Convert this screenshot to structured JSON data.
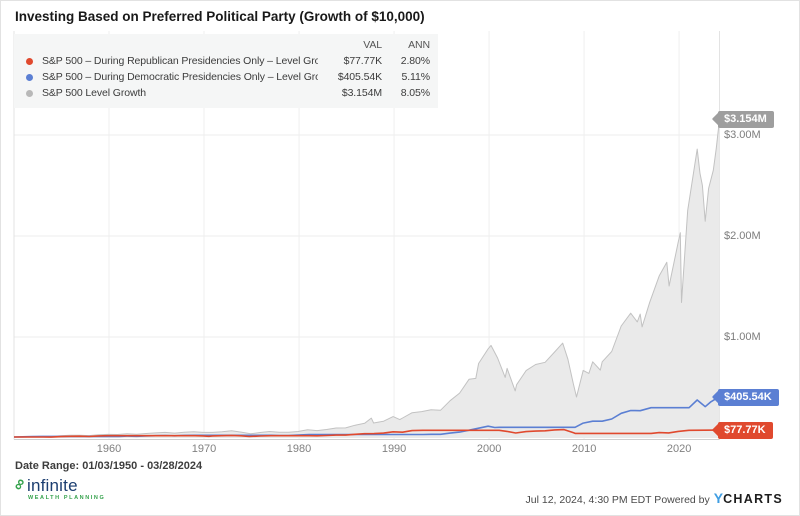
{
  "title": "Investing Based on Preferred Political Party (Growth of $10,000)",
  "legend": {
    "val_header": "VAL",
    "ann_header": "ANN",
    "rows": [
      {
        "label": "S&P 500 – During Republican Presidencies Only – Level Growth",
        "val": "$77.77K",
        "ann": "2.80%",
        "color": "#e0492e"
      },
      {
        "label": "S&P 500 – During Democratic Presidencies Only – Level Growth",
        "val": "$405.54K",
        "ann": "5.11%",
        "color": "#5b7fd3"
      },
      {
        "label": "S&P 500 Level Growth",
        "val": "$3.154M",
        "ann": "8.05%",
        "color": "#b8b8b8"
      }
    ]
  },
  "footer": {
    "date_range": "Date Range: 01/03/1950 - 03/28/2024",
    "logo_text": "infinite",
    "logo_glyph": "∞",
    "logo_sub": "WEALTH PLANNING",
    "timestamp": "Jul 12, 2024, 4:30 PM EDT Powered by",
    "ycharts_y": "Y",
    "ycharts_rest": "CHARTS"
  },
  "chart_data": {
    "type": "area",
    "title": "Investing Based on Preferred Political Party (Growth of $10,000)",
    "unit": "USD thousands",
    "x_range": [
      1950,
      2024.25
    ],
    "ylim_thousands": [
      0,
      3300
    ],
    "grid": true,
    "legend_position": "top-left",
    "x_label_years": [
      1960,
      1970,
      1980,
      1990,
      2000,
      2010,
      2020
    ],
    "y_ticks": [
      {
        "label": "$3.00M",
        "value": 3000
      },
      {
        "label": "$2.00M",
        "value": 2000
      },
      {
        "label": "$1.00M",
        "value": 1000
      }
    ],
    "series": [
      {
        "name": "S&P 500 Level Growth",
        "end_label": "$3.154M",
        "end_value": 3154,
        "annualized": "8.05%",
        "color": "#c2c2c2",
        "fill": "#eaeaea",
        "tag_color": "#9e9e9e",
        "width": 1,
        "points": [
          [
            1950,
            10
          ],
          [
            1950.9,
            12.2
          ],
          [
            1951.9,
            14.3
          ],
          [
            1952.9,
            16
          ],
          [
            1953.9,
            14.9
          ],
          [
            1954.9,
            21.6
          ],
          [
            1955.9,
            27.3
          ],
          [
            1956.9,
            28
          ],
          [
            1957.9,
            24
          ],
          [
            1958.9,
            33.1
          ],
          [
            1959.9,
            36
          ],
          [
            1960.9,
            34.9
          ],
          [
            1961.9,
            43
          ],
          [
            1962.9,
            37.9
          ],
          [
            1963.9,
            45
          ],
          [
            1964.9,
            50.9
          ],
          [
            1965.9,
            55.5
          ],
          [
            1966.9,
            48.2
          ],
          [
            1967.9,
            57.9
          ],
          [
            1968.9,
            62.4
          ],
          [
            1969.9,
            55.3
          ],
          [
            1970.9,
            55.3
          ],
          [
            1971.9,
            61.3
          ],
          [
            1972.9,
            70.9
          ],
          [
            1973.9,
            58.6
          ],
          [
            1974.9,
            41.2
          ],
          [
            1975.9,
            54.1
          ],
          [
            1976.9,
            64.5
          ],
          [
            1977.9,
            57.1
          ],
          [
            1978.9,
            57.7
          ],
          [
            1979.9,
            64.8
          ],
          [
            1980.9,
            81.5
          ],
          [
            1981.9,
            73.6
          ],
          [
            1982.9,
            84.4
          ],
          [
            1983.9,
            99
          ],
          [
            1984.9,
            100.4
          ],
          [
            1985.9,
            126.8
          ],
          [
            1986.9,
            145.4
          ],
          [
            1987.6,
            197
          ],
          [
            1987.85,
            148.3
          ],
          [
            1988.9,
            166.7
          ],
          [
            1989.9,
            212.1
          ],
          [
            1990.6,
            182
          ],
          [
            1990.9,
            198.2
          ],
          [
            1991.9,
            250.3
          ],
          [
            1992.9,
            261.5
          ],
          [
            1993.9,
            280
          ],
          [
            1994.9,
            275.7
          ],
          [
            1995.9,
            369.7
          ],
          [
            1996.9,
            444.6
          ],
          [
            1997.9,
            582.4
          ],
          [
            1998.6,
            590
          ],
          [
            1998.9,
            737.8
          ],
          [
            1999.9,
            881.9
          ],
          [
            2000.2,
            916.6
          ],
          [
            2000.9,
            792.5
          ],
          [
            2001.7,
            600
          ],
          [
            2001.9,
            689.1
          ],
          [
            2002.75,
            466
          ],
          [
            2002.9,
            528
          ],
          [
            2003.9,
            667.4
          ],
          [
            2004.9,
            727.4
          ],
          [
            2005.9,
            749.2
          ],
          [
            2006.9,
            851.3
          ],
          [
            2007.75,
            939.4
          ],
          [
            2008.3,
            780
          ],
          [
            2008.85,
            542.2
          ],
          [
            2009.2,
            406.3
          ],
          [
            2009.9,
            669.3
          ],
          [
            2010.5,
            640
          ],
          [
            2010.9,
            754.8
          ],
          [
            2011.7,
            672
          ],
          [
            2011.9,
            754.8
          ],
          [
            2012.9,
            856
          ],
          [
            2013.9,
            1109.4
          ],
          [
            2014.9,
            1235.8
          ],
          [
            2015.6,
            1150
          ],
          [
            2015.9,
            1226.8
          ],
          [
            2016.1,
            1100
          ],
          [
            2016.9,
            1343.7
          ],
          [
            2017.9,
            1604.7
          ],
          [
            2018.7,
            1740
          ],
          [
            2018.95,
            1504.6
          ],
          [
            2019.9,
            1939.1
          ],
          [
            2020.12,
            2032
          ],
          [
            2020.25,
            1342
          ],
          [
            2020.9,
            2254.4
          ],
          [
            2021.9,
            2860.7
          ],
          [
            2022.2,
            2620
          ],
          [
            2022.45,
            2500
          ],
          [
            2022.75,
            2147
          ],
          [
            2023.1,
            2470
          ],
          [
            2023.6,
            2650
          ],
          [
            2023.9,
            2862.9
          ],
          [
            2024.25,
            3154
          ]
        ]
      },
      {
        "name": "S&P 500 – During Democratic Presidencies Only – Level Growth",
        "end_label": "$405.54K",
        "end_value": 405.54,
        "annualized": "5.11%",
        "color": "#5b7fd3",
        "fill": null,
        "tag_color": "#5b7fd3",
        "width": 1.6,
        "points": [
          [
            1950,
            10
          ],
          [
            1950.9,
            12.2
          ],
          [
            1951.9,
            14.3
          ],
          [
            1953.05,
            15.9
          ],
          [
            1961.05,
            15.9
          ],
          [
            1961.9,
            19
          ],
          [
            1962.9,
            16.8
          ],
          [
            1963.9,
            20
          ],
          [
            1964.9,
            22.6
          ],
          [
            1965.9,
            24.6
          ],
          [
            1966.9,
            21.4
          ],
          [
            1967.9,
            25.7
          ],
          [
            1969.05,
            27.2
          ],
          [
            1977.05,
            27.2
          ],
          [
            1977.9,
            24.9
          ],
          [
            1978.9,
            25.2
          ],
          [
            1979.9,
            28.3
          ],
          [
            1981.05,
            34.5
          ],
          [
            1993.05,
            34.5
          ],
          [
            1993.9,
            37
          ],
          [
            1994.9,
            36.4
          ],
          [
            1995.9,
            48.8
          ],
          [
            1996.9,
            58.7
          ],
          [
            1997.9,
            76.9
          ],
          [
            1998.9,
            97.5
          ],
          [
            1999.9,
            116.5
          ],
          [
            2000.6,
            104
          ],
          [
            2001.05,
            106.4
          ],
          [
            2009.05,
            106.4
          ],
          [
            2009.9,
            147.3
          ],
          [
            2010.9,
            166.2
          ],
          [
            2011.9,
            166.2
          ],
          [
            2012.9,
            188.4
          ],
          [
            2013.9,
            244.2
          ],
          [
            2014.9,
            272
          ],
          [
            2015.9,
            270.1
          ],
          [
            2017.05,
            300.1
          ],
          [
            2021.05,
            300.1
          ],
          [
            2021.9,
            376.5
          ],
          [
            2022.5,
            330
          ],
          [
            2022.75,
            310
          ],
          [
            2023.3,
            355
          ],
          [
            2023.9,
            390
          ],
          [
            2024.25,
            405.54
          ]
        ]
      },
      {
        "name": "S&P 500 – During Republican Presidencies Only – Level Growth",
        "end_label": "$77.77K",
        "end_value": 77.77,
        "annualized": "2.80%",
        "color": "#e0492e",
        "fill": null,
        "tag_color": "#e0492e",
        "width": 1.6,
        "points": [
          [
            1950,
            10
          ],
          [
            1953.05,
            10
          ],
          [
            1953.9,
            9.4
          ],
          [
            1954.9,
            13.6
          ],
          [
            1955.9,
            17.2
          ],
          [
            1956.9,
            17.7
          ],
          [
            1957.9,
            15.2
          ],
          [
            1958.9,
            20.9
          ],
          [
            1959.9,
            22.7
          ],
          [
            1961.05,
            22.6
          ],
          [
            1969.05,
            22.6
          ],
          [
            1969.9,
            20.4
          ],
          [
            1970.5,
            17
          ],
          [
            1970.9,
            20.4
          ],
          [
            1971.9,
            22.6
          ],
          [
            1972.9,
            26.2
          ],
          [
            1973.9,
            21.6
          ],
          [
            1974.75,
            15.2
          ],
          [
            1975.9,
            20
          ],
          [
            1977.05,
            23
          ],
          [
            1981.05,
            23
          ],
          [
            1981.9,
            21.4
          ],
          [
            1982.9,
            24.6
          ],
          [
            1983.9,
            28.8
          ],
          [
            1984.9,
            29.2
          ],
          [
            1985.9,
            36.9
          ],
          [
            1986.9,
            42.3
          ],
          [
            1987.9,
            43.2
          ],
          [
            1988.9,
            48.5
          ],
          [
            1989.9,
            61.7
          ],
          [
            1990.9,
            57.7
          ],
          [
            1991.9,
            72.8
          ],
          [
            1993.05,
            76.1
          ],
          [
            2001.05,
            76.1
          ],
          [
            2001.9,
            65.1
          ],
          [
            2002.8,
            49.9
          ],
          [
            2003.9,
            63
          ],
          [
            2004.9,
            68.7
          ],
          [
            2005.9,
            70.8
          ],
          [
            2006.9,
            80.4
          ],
          [
            2007.9,
            83.2
          ],
          [
            2008.9,
            51.2
          ],
          [
            2009.05,
            45.6
          ],
          [
            2017.05,
            45.6
          ],
          [
            2017.9,
            53.7
          ],
          [
            2018.9,
            50.3
          ],
          [
            2019.9,
            64.9
          ],
          [
            2020.9,
            75.4
          ],
          [
            2021.05,
            76.3
          ],
          [
            2024.25,
            77.77
          ]
        ]
      }
    ]
  }
}
